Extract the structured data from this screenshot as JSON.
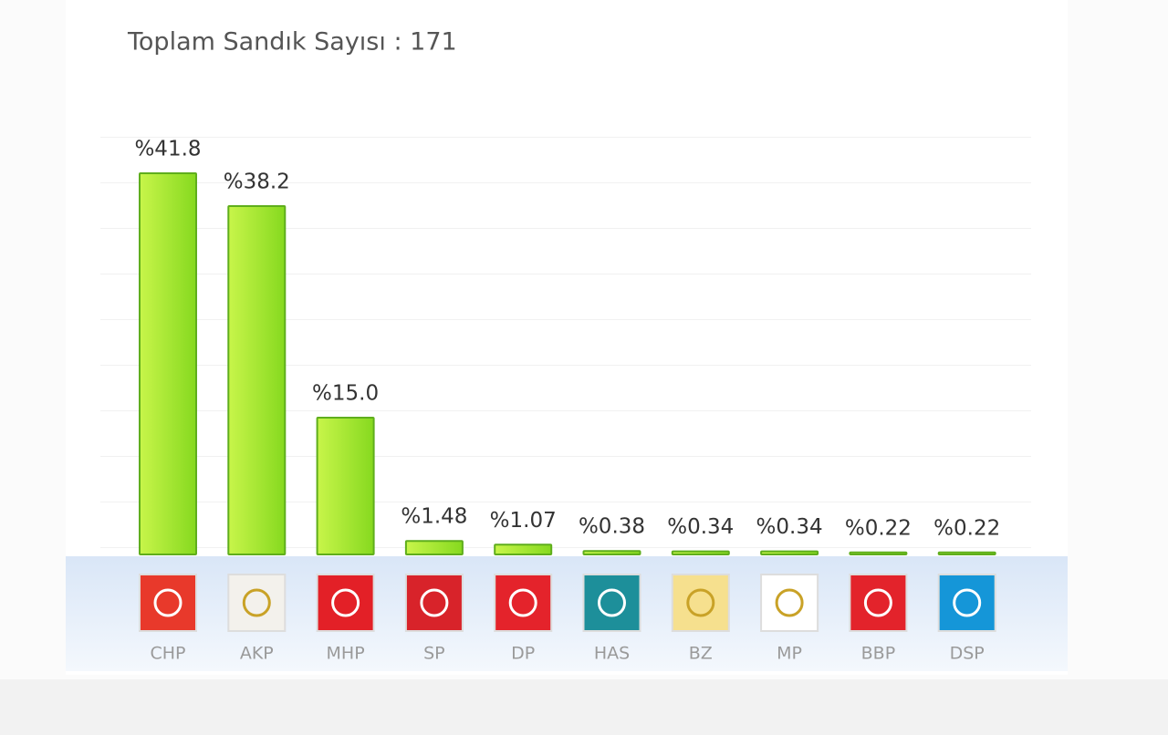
{
  "chart_data": {
    "type": "bar",
    "title": "Toplam Sandık Sayısı : 171",
    "categories": [
      "CHP",
      "AKP",
      "MHP",
      "SP",
      "DP",
      "HAS",
      "BZ",
      "MP",
      "BBP",
      "DSP"
    ],
    "values": [
      41.8,
      38.2,
      15.0,
      1.48,
      1.07,
      0.38,
      0.34,
      0.34,
      0.22,
      0.22
    ],
    "value_labels": [
      "%41.8",
      "%38.2",
      "%15.0",
      "%1.48",
      "%1.07",
      "%0.38",
      "%0.34",
      "%0.34",
      "%0.22",
      "%0.22"
    ],
    "color": "#9be22d"
  }
}
